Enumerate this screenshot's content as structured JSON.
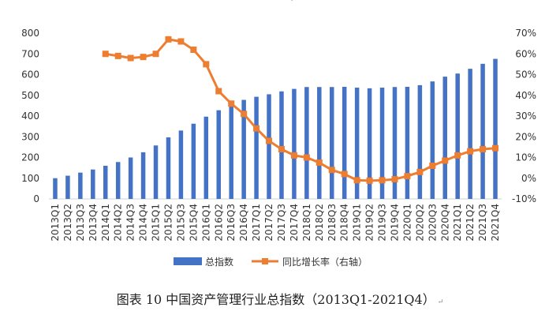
{
  "chart_data": {
    "type": "bar",
    "categories": [
      "2013Q1",
      "2013Q2",
      "2013Q3",
      "2013Q4",
      "2014Q1",
      "2014Q2",
      "2014Q3",
      "2014Q4",
      "2015Q1",
      "2015Q2",
      "2015Q3",
      "2015Q4",
      "2016Q1",
      "2016Q2",
      "2016Q3",
      "2016Q4",
      "2017Q1",
      "2017Q2",
      "2017Q3",
      "2017Q4",
      "2018Q1",
      "2018Q2",
      "2018Q3",
      "2018Q4",
      "2019Q1",
      "2019Q2",
      "2019Q3",
      "2019Q4",
      "2020Q1",
      "2020Q2",
      "2020Q3",
      "2020Q4",
      "2021Q1",
      "2021Q2",
      "2021Q3",
      "2021Q4"
    ],
    "series": [
      {
        "name": "总指数",
        "type": "bar",
        "axis": "left",
        "color": "#4472C4",
        "values": [
          100,
          112,
          127,
          142,
          160,
          178,
          200,
          225,
          258,
          297,
          330,
          363,
          397,
          428,
          456,
          478,
          493,
          505,
          519,
          531,
          540,
          540,
          540,
          541,
          537,
          534,
          537,
          540,
          541,
          549,
          567,
          590,
          605,
          628,
          652,
          676
        ]
      },
      {
        "name": "同比增长率（右轴）",
        "type": "line",
        "axis": "right",
        "color": "#ED7D31",
        "values": [
          null,
          null,
          null,
          null,
          60,
          59,
          58,
          58.5,
          60,
          67,
          66,
          62,
          55,
          42,
          36,
          31,
          24,
          18,
          14,
          11,
          10,
          7.5,
          4,
          2,
          -1,
          -1.2,
          -1,
          -0.5,
          1,
          3,
          6,
          8.5,
          11,
          13,
          14,
          14.5
        ]
      }
    ],
    "y_left": {
      "ylim": [
        0,
        800
      ],
      "ticks": [
        "0",
        "100",
        "200",
        "300",
        "400",
        "500",
        "600",
        "700",
        "800"
      ]
    },
    "y_right": {
      "ylim": [
        -10,
        70
      ],
      "ticks": [
        "-10%",
        "0%",
        "10%",
        "20%",
        "30%",
        "40%",
        "50%",
        "60%",
        "70%"
      ]
    },
    "grid": false,
    "legend": "bottom"
  },
  "caption": "图表 10 中国资产管理行业总指数（2013Q1-2021Q4）",
  "caption_mark": "↵",
  "top_mark": "↵"
}
